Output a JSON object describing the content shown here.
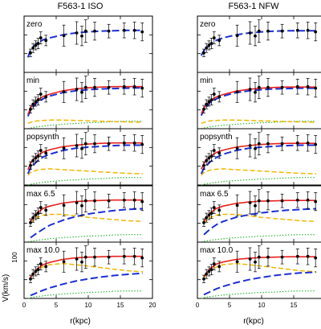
{
  "figure": {
    "columns": [
      "F563-1 ISO",
      "F563-1 NFW"
    ],
    "y_axis_label": "V(km/s)",
    "x_axis_label": "r(kpc)",
    "y_tick_label": "100",
    "x_tick_labels": [
      "0",
      "5",
      "10",
      "15",
      "20"
    ]
  },
  "chart_data": {
    "type": "line",
    "layout": "5 rows x 2 columns of panels, shared axes",
    "xlim": [
      0,
      20
    ],
    "ylim": [
      0,
      150
    ],
    "x_ticks": [
      0,
      5,
      10,
      15,
      20
    ],
    "colors": {
      "data": "#000000",
      "total_fit": "#e8221c",
      "halo": "#1c2fd6",
      "stars": "#f2b705",
      "gas": "#33b833"
    },
    "observed": {
      "x": [
        1.0,
        1.4,
        1.8,
        2.2,
        2.6,
        3.4,
        6.2,
        8.2,
        9.0,
        9.6,
        11.0,
        13.2,
        15.6,
        17.2,
        18.4
      ],
      "y": [
        52,
        65,
        72,
        77,
        92,
        85,
        98,
        105,
        97,
        110,
        110,
        110,
        112,
        112,
        108
      ],
      "err": [
        10,
        12,
        12,
        14,
        16,
        14,
        28,
        30,
        26,
        30,
        24,
        18,
        20,
        22,
        24
      ]
    },
    "panels": [
      {
        "column": "F563-1 ISO",
        "label": "zero",
        "halo": {
          "x": [
            0.6,
            1,
            2,
            3,
            4,
            6,
            8,
            10,
            12,
            14,
            16,
            18.5
          ],
          "y": [
            40,
            60,
            78,
            87,
            92,
            100,
            105,
            108,
            110,
            111,
            112,
            112
          ]
        }
      },
      {
        "column": "F563-1 ISO",
        "label": "min",
        "total": {
          "x": [
            0.6,
            1,
            2,
            3,
            4,
            6,
            8,
            10,
            12,
            14,
            16,
            18.5
          ],
          "y": [
            38,
            56,
            76,
            86,
            92,
            101,
            106,
            109,
            111,
            112,
            112,
            112
          ]
        },
        "halo": {
          "x": [
            0.6,
            1,
            2,
            3,
            4,
            6,
            8,
            10,
            12,
            14,
            16,
            18.5
          ],
          "y": [
            33,
            50,
            70,
            80,
            87,
            96,
            101,
            104,
            106,
            107,
            108,
            109
          ]
        },
        "stars": {
          "x": [
            0.6,
            1,
            2,
            3,
            4,
            6,
            8,
            10,
            12,
            14,
            16,
            18.5
          ],
          "y": [
            14,
            17,
            21,
            22,
            23,
            23,
            22,
            21,
            20,
            19,
            18,
            17
          ]
        },
        "gas": {
          "x": [
            0.6,
            1,
            2,
            4,
            6,
            8,
            10,
            12,
            14,
            16,
            18.5
          ],
          "y": [
            0,
            2,
            5,
            9,
            12,
            14,
            16,
            17,
            19,
            20,
            20
          ]
        }
      },
      {
        "column": "F563-1 ISO",
        "label": "popsynth",
        "total": {
          "x": [
            0.6,
            1,
            2,
            3,
            4,
            6,
            8,
            10,
            12,
            14,
            16,
            18.5
          ],
          "y": [
            40,
            58,
            78,
            88,
            94,
            102,
            106,
            109,
            111,
            112,
            112,
            112
          ]
        },
        "halo": {
          "x": [
            0.6,
            1,
            2,
            3,
            4,
            6,
            8,
            10,
            12,
            14,
            16,
            18.5
          ],
          "y": [
            30,
            45,
            63,
            75,
            82,
            92,
            98,
            101,
            103,
            105,
            106,
            106
          ]
        },
        "stars": {
          "x": [
            0.6,
            1,
            2,
            3,
            4,
            6,
            8,
            10,
            12,
            14,
            16,
            18.5
          ],
          "y": [
            26,
            33,
            40,
            42,
            43,
            41,
            39,
            37,
            35,
            33,
            31,
            30
          ]
        },
        "gas": {
          "x": [
            0.6,
            1,
            2,
            4,
            6,
            8,
            10,
            12,
            14,
            16,
            18.5
          ],
          "y": [
            0,
            2,
            5,
            9,
            12,
            14,
            16,
            17,
            19,
            20,
            20
          ]
        }
      },
      {
        "column": "F563-1 ISO",
        "label": "max 6.5",
        "total": {
          "x": [
            1,
            2,
            3,
            4,
            6,
            8,
            10,
            12,
            14,
            16,
            18.5
          ],
          "y": [
            55,
            78,
            90,
            96,
            104,
            108,
            110,
            111,
            112,
            112,
            112
          ]
        },
        "halo": {
          "x": [
            1,
            2,
            3,
            4,
            6,
            8,
            10,
            12,
            14,
            16,
            18.5
          ],
          "y": [
            12,
            24,
            35,
            45,
            58,
            68,
            75,
            80,
            84,
            87,
            89
          ]
        },
        "stars": {
          "x": [
            1,
            2,
            3,
            4,
            6,
            8,
            10,
            12,
            14,
            16,
            18.5
          ],
          "y": [
            50,
            66,
            72,
            74,
            74,
            70,
            66,
            63,
            60,
            57,
            55
          ]
        },
        "gas": {
          "x": [
            0.6,
            1,
            2,
            4,
            6,
            8,
            10,
            12,
            14,
            16,
            18.5
          ],
          "y": [
            0,
            2,
            5,
            9,
            12,
            14,
            16,
            17,
            19,
            20,
            20
          ]
        }
      },
      {
        "column": "F563-1 ISO",
        "label": "max 10.0",
        "total": {
          "x": [
            1,
            2,
            3,
            4,
            6,
            8,
            10,
            12,
            14,
            16,
            18.5
          ],
          "y": [
            55,
            78,
            90,
            96,
            104,
            108,
            110,
            111,
            112,
            112,
            112
          ]
        },
        "halo": {
          "x": [
            1,
            2,
            3,
            4,
            6,
            8,
            10,
            12,
            14,
            16,
            18.5
          ],
          "y": [
            8,
            15,
            22,
            28,
            38,
            46,
            52,
            57,
            61,
            64,
            67
          ]
        },
        "stars": {
          "x": [
            1,
            2,
            3,
            4,
            6,
            8,
            10,
            12,
            14,
            16,
            18.5
          ],
          "y": [
            55,
            74,
            84,
            90,
            93,
            90,
            86,
            82,
            78,
            74,
            71
          ]
        },
        "gas": {
          "x": [
            0.6,
            1,
            2,
            4,
            6,
            8,
            10,
            12,
            14,
            16,
            18.5
          ],
          "y": [
            0,
            2,
            5,
            9,
            12,
            14,
            16,
            17,
            19,
            20,
            20
          ]
        }
      },
      {
        "column": "F563-1 NFW",
        "label": "zero",
        "halo": {
          "x": [
            0.6,
            1,
            2,
            3,
            4,
            6,
            8,
            10,
            12,
            14,
            16,
            18.5
          ],
          "y": [
            45,
            58,
            76,
            86,
            92,
            100,
            105,
            108,
            110,
            111,
            111,
            111
          ]
        }
      },
      {
        "column": "F563-1 NFW",
        "label": "min",
        "total": {
          "x": [
            0.6,
            1,
            2,
            3,
            4,
            6,
            8,
            10,
            12,
            14,
            16,
            18.5
          ],
          "y": [
            40,
            55,
            75,
            85,
            91,
            100,
            105,
            108,
            110,
            111,
            111,
            111
          ]
        },
        "halo": {
          "x": [
            0.6,
            1,
            2,
            3,
            4,
            6,
            8,
            10,
            12,
            14,
            16,
            18.5
          ],
          "y": [
            35,
            50,
            70,
            80,
            87,
            96,
            101,
            104,
            106,
            107,
            108,
            108
          ]
        },
        "stars": {
          "x": [
            0.6,
            1,
            2,
            3,
            4,
            6,
            8,
            10,
            12,
            14,
            16,
            18.5
          ],
          "y": [
            14,
            17,
            21,
            22,
            23,
            23,
            22,
            21,
            20,
            19,
            18,
            17
          ]
        },
        "gas": {
          "x": [
            0.6,
            1,
            2,
            4,
            6,
            8,
            10,
            12,
            14,
            16,
            18.5
          ],
          "y": [
            0,
            2,
            5,
            9,
            12,
            14,
            16,
            17,
            19,
            20,
            20
          ]
        }
      },
      {
        "column": "F563-1 NFW",
        "label": "popsynth",
        "total": {
          "x": [
            0.6,
            1,
            2,
            3,
            4,
            6,
            8,
            10,
            12,
            14,
            16,
            18.5
          ],
          "y": [
            42,
            57,
            77,
            87,
            93,
            101,
            105,
            108,
            110,
            111,
            111,
            111
          ]
        },
        "halo": {
          "x": [
            0.6,
            1,
            2,
            3,
            4,
            6,
            8,
            10,
            12,
            14,
            16,
            18.5
          ],
          "y": [
            30,
            44,
            62,
            74,
            82,
            92,
            98,
            101,
            103,
            105,
            106,
            106
          ]
        },
        "stars": {
          "x": [
            0.6,
            1,
            2,
            3,
            4,
            6,
            8,
            10,
            12,
            14,
            16,
            18.5
          ],
          "y": [
            26,
            33,
            40,
            42,
            43,
            41,
            39,
            37,
            35,
            33,
            31,
            30
          ]
        },
        "gas": {
          "x": [
            0.6,
            1,
            2,
            4,
            6,
            8,
            10,
            12,
            14,
            16,
            18.5
          ],
          "y": [
            0,
            2,
            5,
            9,
            12,
            14,
            16,
            17,
            19,
            20,
            20
          ]
        }
      },
      {
        "column": "F563-1 NFW",
        "label": "max 6.5",
        "total": {
          "x": [
            1,
            2,
            3,
            4,
            6,
            8,
            10,
            12,
            14,
            16,
            18.5
          ],
          "y": [
            55,
            78,
            90,
            96,
            103,
            107,
            109,
            110,
            111,
            111,
            111
          ]
        },
        "halo": {
          "x": [
            1,
            2,
            3,
            4,
            6,
            8,
            10,
            12,
            14,
            16,
            18.5
          ],
          "y": [
            20,
            35,
            47,
            55,
            66,
            73,
            78,
            82,
            85,
            87,
            89
          ]
        },
        "stars": {
          "x": [
            1,
            2,
            3,
            4,
            6,
            8,
            10,
            12,
            14,
            16,
            18.5
          ],
          "y": [
            50,
            66,
            72,
            74,
            74,
            70,
            66,
            63,
            60,
            57,
            55
          ]
        },
        "gas": {
          "x": [
            0.6,
            1,
            2,
            4,
            6,
            8,
            10,
            12,
            14,
            16,
            18.5
          ],
          "y": [
            0,
            2,
            5,
            9,
            12,
            14,
            16,
            17,
            19,
            20,
            20
          ]
        }
      },
      {
        "column": "F563-1 NFW",
        "label": "max 10.0",
        "total": {
          "x": [
            1,
            2,
            3,
            4,
            6,
            8,
            10,
            12,
            14,
            16,
            18.5
          ],
          "y": [
            58,
            80,
            92,
            97,
            104,
            107,
            109,
            110,
            111,
            111,
            111
          ]
        },
        "halo": {
          "x": [
            1,
            2,
            3,
            4,
            6,
            8,
            10,
            12,
            14,
            16,
            18.5
          ],
          "y": [
            10,
            18,
            26,
            32,
            42,
            50,
            56,
            61,
            65,
            68,
            70
          ]
        },
        "stars": {
          "x": [
            1,
            2,
            3,
            4,
            6,
            8,
            10,
            12,
            14,
            16,
            18.5
          ],
          "y": [
            55,
            74,
            84,
            90,
            93,
            90,
            86,
            82,
            78,
            74,
            71
          ]
        },
        "gas": {
          "x": [
            0.6,
            1,
            2,
            4,
            6,
            8,
            10,
            12,
            14,
            16,
            18.5
          ],
          "y": [
            0,
            2,
            5,
            9,
            12,
            14,
            16,
            17,
            19,
            20,
            20
          ]
        }
      }
    ]
  }
}
